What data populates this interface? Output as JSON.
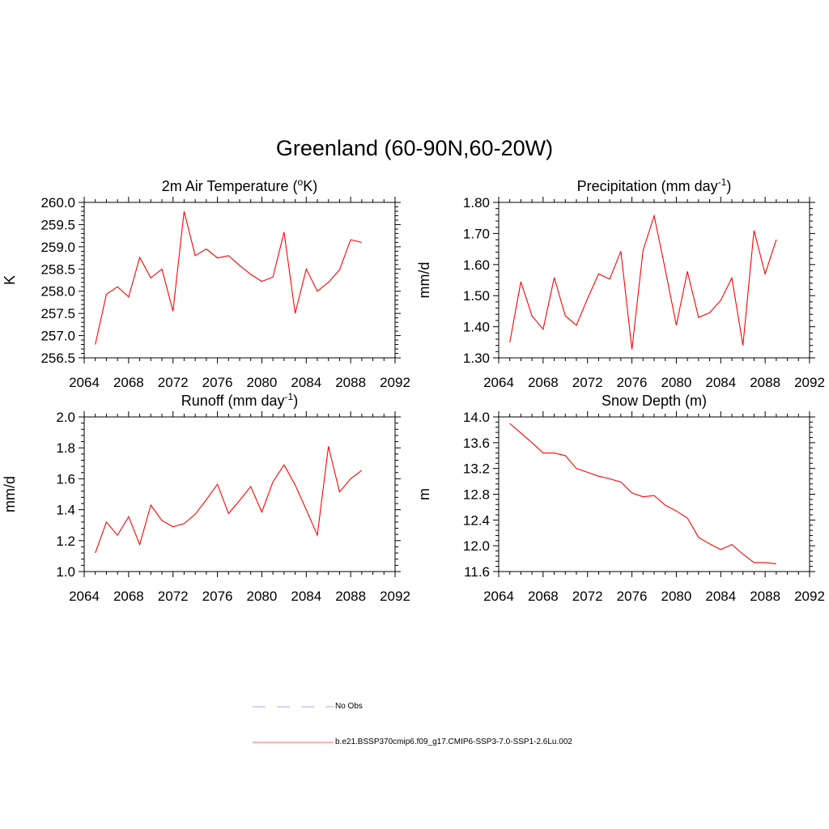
{
  "title": "Greenland (60-90N,60-20W)",
  "chart_data": [
    {
      "type": "line",
      "title": "2m Air Temperature (",
      "title_sup": "o",
      "title_after": "K)",
      "ylabel": "K",
      "xlim": [
        2064,
        2092
      ],
      "ylim": [
        256.5,
        260.0
      ],
      "xticks": [
        2064,
        2068,
        2072,
        2076,
        2080,
        2084,
        2088,
        2092
      ],
      "yticks": [
        "256.5",
        "257.0",
        "257.5",
        "258.0",
        "258.5",
        "259.0",
        "259.5",
        "260.0"
      ],
      "series": [
        {
          "color": "#ff0000",
          "x": [
            2065,
            2066,
            2067,
            2068,
            2069,
            2070,
            2071,
            2072,
            2073,
            2074,
            2075,
            2076,
            2077,
            2078,
            2079,
            2080,
            2081,
            2082,
            2083,
            2084,
            2085,
            2086,
            2087,
            2088,
            2089
          ],
          "y": [
            256.8,
            257.93,
            258.1,
            257.87,
            258.76,
            258.3,
            258.5,
            257.55,
            259.8,
            258.8,
            258.95,
            258.75,
            258.8,
            258.58,
            258.38,
            258.22,
            258.32,
            259.33,
            257.5,
            258.5,
            258.0,
            258.2,
            258.48,
            259.16,
            259.1
          ]
        }
      ]
    },
    {
      "type": "line",
      "title": "Precipitation (mm day",
      "title_sup": "-1",
      "title_after": ")",
      "ylabel": "mm/d",
      "xlim": [
        2064,
        2092
      ],
      "ylim": [
        1.3,
        1.8
      ],
      "xticks": [
        2064,
        2068,
        2072,
        2076,
        2080,
        2084,
        2088,
        2092
      ],
      "yticks": [
        "1.30",
        "1.40",
        "1.50",
        "1.60",
        "1.70",
        "1.80"
      ],
      "series": [
        {
          "color": "#ff0000",
          "x": [
            2065,
            2066,
            2067,
            2068,
            2069,
            2070,
            2071,
            2072,
            2073,
            2074,
            2075,
            2076,
            2077,
            2078,
            2079,
            2080,
            2081,
            2082,
            2083,
            2084,
            2085,
            2086,
            2087,
            2088,
            2089
          ],
          "y": [
            1.35,
            1.545,
            1.435,
            1.392,
            1.558,
            1.435,
            1.405,
            1.49,
            1.57,
            1.553,
            1.643,
            1.327,
            1.645,
            1.757,
            1.585,
            1.405,
            1.578,
            1.43,
            1.445,
            1.485,
            1.557,
            1.34,
            1.71,
            1.57,
            1.68
          ]
        }
      ]
    },
    {
      "type": "line",
      "title": "Runoff (mm day",
      "title_sup": "-1",
      "title_after": ")",
      "ylabel": "mm/d",
      "xlim": [
        2064,
        2092
      ],
      "ylim": [
        1.0,
        2.0
      ],
      "xticks": [
        2064,
        2068,
        2072,
        2076,
        2080,
        2084,
        2088,
        2092
      ],
      "yticks": [
        "1.0",
        "1.2",
        "1.4",
        "1.6",
        "1.8",
        "2.0"
      ],
      "series": [
        {
          "color": "#ff0000",
          "x": [
            2065,
            2066,
            2067,
            2068,
            2069,
            2070,
            2071,
            2072,
            2073,
            2074,
            2075,
            2076,
            2077,
            2078,
            2079,
            2080,
            2081,
            2082,
            2083,
            2084,
            2085,
            2086,
            2087,
            2088,
            2089
          ],
          "y": [
            1.12,
            1.32,
            1.235,
            1.355,
            1.175,
            1.43,
            1.33,
            1.29,
            1.31,
            1.37,
            1.465,
            1.565,
            1.375,
            1.46,
            1.55,
            1.385,
            1.58,
            1.69,
            1.56,
            1.4,
            1.235,
            1.81,
            1.515,
            1.6,
            1.655
          ]
        }
      ]
    },
    {
      "type": "line",
      "title": "Snow Depth (m)",
      "title_sup": "",
      "title_after": "",
      "ylabel": "m",
      "xlim": [
        2064,
        2092
      ],
      "ylim": [
        11.6,
        14.0
      ],
      "xticks": [
        2064,
        2068,
        2072,
        2076,
        2080,
        2084,
        2088,
        2092
      ],
      "yticks": [
        "11.6",
        "12.0",
        "12.4",
        "12.8",
        "13.2",
        "13.6",
        "14.0"
      ],
      "series": [
        {
          "color": "#ff0000",
          "x": [
            2065,
            2066,
            2067,
            2068,
            2069,
            2070,
            2071,
            2072,
            2073,
            2074,
            2075,
            2076,
            2077,
            2078,
            2079,
            2080,
            2081,
            2082,
            2083,
            2084,
            2085,
            2086,
            2087,
            2088,
            2089
          ],
          "y": [
            13.9,
            13.75,
            13.6,
            13.44,
            13.44,
            13.4,
            13.2,
            13.14,
            13.08,
            13.04,
            12.99,
            12.82,
            12.76,
            12.78,
            12.63,
            12.54,
            12.43,
            12.13,
            12.03,
            11.94,
            12.02,
            11.87,
            11.74,
            11.74,
            11.72
          ]
        }
      ]
    }
  ],
  "legend": [
    {
      "label": "No Obs",
      "color": "#aaaaee",
      "style": "dashed"
    },
    {
      "label": "b.e21.BSSP370cmip6.f09_g17.CMIP6-SSP3-7.0-SSP1-2.6Lu.002",
      "color": "#ff6666",
      "style": "solid"
    }
  ]
}
